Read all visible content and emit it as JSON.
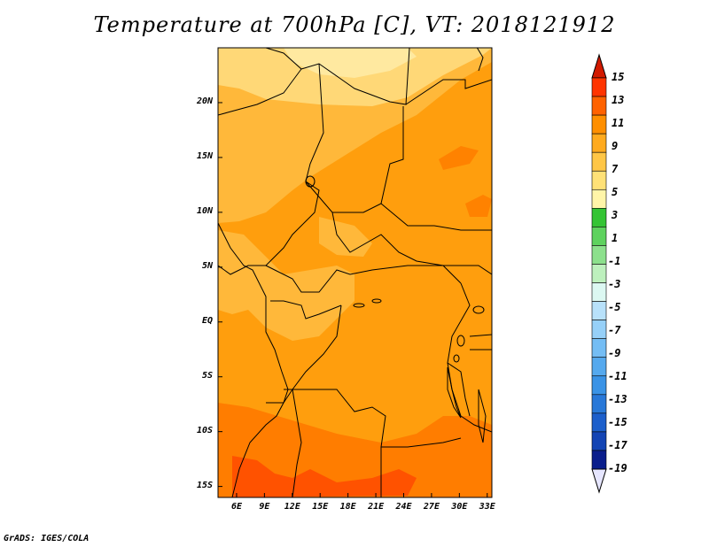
{
  "title": "Temperature at 700hPa [C], VT: 2018121912",
  "credit": "GrADS: IGES/COLA",
  "map": {
    "lon_range": [
      4,
      33.5
    ],
    "lat_range": [
      -16,
      25
    ],
    "lat_labels": [
      "20N",
      "15N",
      "10N",
      "5N",
      "EQ",
      "5S",
      "10S",
      "15S"
    ],
    "lat_values": [
      20,
      15,
      10,
      5,
      0,
      -5,
      -10,
      -15
    ],
    "lon_labels": [
      "6E",
      "9E",
      "12E",
      "15E",
      "18E",
      "21E",
      "24E",
      "27E",
      "30E",
      "33E"
    ],
    "lon_values": [
      6,
      9,
      12,
      15,
      18,
      21,
      24,
      27,
      30,
      33
    ]
  },
  "colorbar": {
    "labels": [
      "15",
      "13",
      "11",
      "9",
      "7",
      "5",
      "3",
      "1",
      "-1",
      "-3",
      "-5",
      "-7",
      "-9",
      "-11",
      "-13",
      "-15",
      "-17",
      "-19"
    ],
    "colors": [
      "#ff3400",
      "#ff6200",
      "#ff8f00",
      "#ffaa1e",
      "#ffc646",
      "#ffe177",
      "#fff5a8",
      "#34c434",
      "#5ed25e",
      "#8ce08c",
      "#bdf0bd",
      "#dcf8f2",
      "#b8e1fa",
      "#96d0f8",
      "#74bdf4",
      "#55a9ee",
      "#3a93e6",
      "#2878d8",
      "#1c5fcb",
      "#1344b4",
      "#0a1e8c"
    ],
    "max_arrow_color": "#d21a00",
    "min_arrow_color": "#e6e6ff"
  }
}
